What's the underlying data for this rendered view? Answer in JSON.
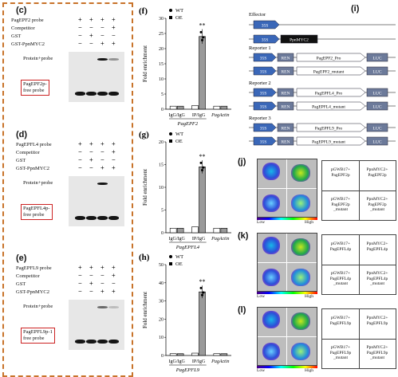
{
  "panels": {
    "c": {
      "label": "(c)",
      "rows": [
        {
          "name": "PagEPF2 probe",
          "signs": [
            "+",
            "+",
            "+",
            "+"
          ]
        },
        {
          "name": "Competitor",
          "signs": [
            "−",
            "−",
            "−",
            "+"
          ]
        },
        {
          "name": "GST",
          "signs": [
            "−",
            "+",
            "−",
            "−"
          ]
        },
        {
          "name": "GST-PpnMYC2",
          "signs": [
            "−",
            "−",
            "+",
            "+"
          ]
        }
      ],
      "protein_probe": "Protein+probe",
      "free_probe": "PagEPF2p-\nfree probe"
    },
    "d": {
      "label": "(d)",
      "rows": [
        {
          "name": "PagEPFL4 probe",
          "signs": [
            "+",
            "+",
            "+",
            "+"
          ]
        },
        {
          "name": "Competitor",
          "signs": [
            "−",
            "−",
            "−",
            "+"
          ]
        },
        {
          "name": "GST",
          "signs": [
            "−",
            "+",
            "−",
            "−"
          ]
        },
        {
          "name": "GST-PpnMYC2",
          "signs": [
            "−",
            "−",
            "+",
            "+"
          ]
        }
      ],
      "protein_probe": "Protein+probe",
      "free_probe": "PagEPFL4p-\nfree probe"
    },
    "e": {
      "label": "(e)",
      "rows": [
        {
          "name": "PagEPFL9 probe",
          "signs": [
            "+",
            "+",
            "+",
            "+"
          ]
        },
        {
          "name": "Competitor",
          "signs": [
            "−",
            "−",
            "−",
            "+"
          ]
        },
        {
          "name": "GST",
          "signs": [
            "−",
            "+",
            "−",
            "−"
          ]
        },
        {
          "name": "GST-PpnMYC2",
          "signs": [
            "−",
            "−",
            "+",
            "+"
          ]
        }
      ],
      "protein_probe": "Protein+probe",
      "free_probe": "PagEPFL9p-1\nfree probe"
    },
    "i": {
      "label": "(i)",
      "effector": "Effector",
      "reporters": [
        "Reporter 1",
        "Reporter 2",
        "Reporter 3"
      ],
      "p35s": "35S",
      "ren": "REN",
      "luc": "LUC",
      "myc": "PpnMYC2",
      "constructs": [
        "PagEPF2_Pro",
        "PagEPF2_mutant",
        "PagEPFL4_Pro",
        "PagEPFL4_mutant",
        "PagEPFL9_Pro",
        "PagEPFL9_mutant"
      ]
    },
    "j": {
      "label": "(j)",
      "cells": [
        "pGWB17+\nPagEPF2p",
        "PpnMYC2+\nPagEPF2p",
        "pGWB17+\nPagEPF2p\n_mutant",
        "PpnMYC2+\nPagEPF2p\n_mutant"
      ]
    },
    "k": {
      "label": "(k)",
      "cells": [
        "pGWB17+\nPagEPFL4p",
        "PpnMYC2+\nPagEPFL4p",
        "pGWB17+\nPagEPFL4p\n_mutant",
        "PpnMYC2+\nPagEPFL4p\n_mutant"
      ]
    },
    "l": {
      "label": "(l)",
      "cells": [
        "pGWB17+\nPagEPFL9p",
        "PpnMYC2+\nPagEPFL9p",
        "pGWB17+\nPagEPFL9p\n_mutant",
        "PpnMYC2+\nPagEPFL9p\n_mutant"
      ]
    },
    "scale": {
      "low": "Low",
      "high": "High"
    }
  },
  "chart_data": [
    {
      "label": "(f)",
      "type": "bar",
      "ylabel": "Fold enrichment",
      "xlabel": "PagEPF2",
      "ylim": [
        0,
        30
      ],
      "yticks": [
        0,
        5,
        10,
        15,
        20,
        25,
        30
      ],
      "categories": [
        "IgG/IgG",
        "IP/IgG",
        "PagActin"
      ],
      "series": [
        {
          "name": "WT",
          "values": [
            1.0,
            1.2,
            1.0
          ],
          "color": "#ffffff"
        },
        {
          "name": "OE",
          "values": [
            1.0,
            24.0,
            1.0
          ],
          "color": "#9a9a9a"
        }
      ],
      "annotation": "**"
    },
    {
      "label": "(g)",
      "type": "bar",
      "ylabel": "Fold enrichment",
      "xlabel": "PagEPFL4",
      "ylim": [
        0,
        20
      ],
      "yticks": [
        0,
        5,
        10,
        15,
        20
      ],
      "categories": [
        "IgG/IgG",
        "IP/IgG",
        "PagActin"
      ],
      "series": [
        {
          "name": "WT",
          "values": [
            1.0,
            1.3,
            1.0
          ],
          "color": "#ffffff"
        },
        {
          "name": "OE",
          "values": [
            1.0,
            14.5,
            1.0
          ],
          "color": "#9a9a9a"
        }
      ],
      "annotation": "**"
    },
    {
      "label": "(h)",
      "type": "bar",
      "ylabel": "Fold enrichment",
      "xlabel": "PagEPFL9",
      "ylim": [
        0,
        50
      ],
      "yticks": [
        0,
        10,
        20,
        30,
        40,
        50
      ],
      "categories": [
        "IgG/IgG",
        "IP/IgG",
        "PagActin"
      ],
      "series": [
        {
          "name": "WT",
          "values": [
            1.0,
            1.3,
            1.0
          ],
          "color": "#ffffff"
        },
        {
          "name": "OE",
          "values": [
            1.0,
            35.0,
            1.0
          ],
          "color": "#9a9a9a"
        }
      ],
      "annotation": "**"
    }
  ]
}
